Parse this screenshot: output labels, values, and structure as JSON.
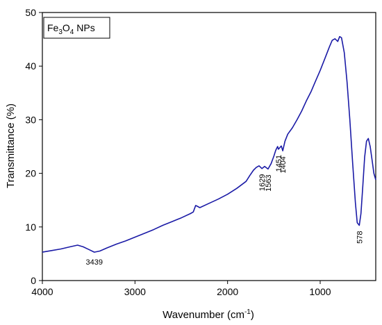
{
  "chart_data": {
    "type": "line",
    "xlabel": "Wavenumber (cm",
    "xlabel_sup": "-1",
    "xlabel_end": ")",
    "ylabel": "Transmittance (%)",
    "xlim": [
      4000,
      400
    ],
    "x_reversed": true,
    "ylim": [
      0,
      50
    ],
    "xticks": [
      4000,
      3000,
      2000,
      1000
    ],
    "yticks": [
      0,
      10,
      20,
      30,
      40,
      50
    ],
    "grid": false,
    "legend": {
      "base": "Fe",
      "sub1": "3",
      "mid": "O",
      "sub2": "4",
      "tail": " NPs",
      "placement": "top-left"
    },
    "series": [
      {
        "color": "#1a1aa6",
        "points": [
          [
            4000,
            5.3
          ],
          [
            3900,
            5.6
          ],
          [
            3800,
            5.9
          ],
          [
            3700,
            6.3
          ],
          [
            3620,
            6.6
          ],
          [
            3560,
            6.3
          ],
          [
            3500,
            5.8
          ],
          [
            3439,
            5.3
          ],
          [
            3380,
            5.5
          ],
          [
            3300,
            6.1
          ],
          [
            3200,
            6.8
          ],
          [
            3100,
            7.4
          ],
          [
            3000,
            8.1
          ],
          [
            2900,
            8.8
          ],
          [
            2800,
            9.5
          ],
          [
            2700,
            10.3
          ],
          [
            2600,
            11.0
          ],
          [
            2500,
            11.7
          ],
          [
            2400,
            12.5
          ],
          [
            2370,
            12.8
          ],
          [
            2345,
            14.0
          ],
          [
            2320,
            13.8
          ],
          [
            2300,
            13.6
          ],
          [
            2200,
            14.4
          ],
          [
            2100,
            15.2
          ],
          [
            2000,
            16.1
          ],
          [
            1900,
            17.2
          ],
          [
            1800,
            18.5
          ],
          [
            1760,
            19.6
          ],
          [
            1720,
            20.6
          ],
          [
            1690,
            21.1
          ],
          [
            1660,
            21.4
          ],
          [
            1629,
            20.9
          ],
          [
            1600,
            21.3
          ],
          [
            1563,
            20.8
          ],
          [
            1530,
            21.8
          ],
          [
            1500,
            23.2
          ],
          [
            1480,
            24.3
          ],
          [
            1460,
            25.0
          ],
          [
            1451,
            24.5
          ],
          [
            1435,
            24.8
          ],
          [
            1420,
            25.1
          ],
          [
            1404,
            24.2
          ],
          [
            1380,
            26.0
          ],
          [
            1350,
            27.3
          ],
          [
            1300,
            28.5
          ],
          [
            1250,
            30.0
          ],
          [
            1200,
            31.6
          ],
          [
            1150,
            33.5
          ],
          [
            1100,
            35.2
          ],
          [
            1050,
            37.2
          ],
          [
            1000,
            39.2
          ],
          [
            950,
            41.4
          ],
          [
            900,
            43.6
          ],
          [
            870,
            44.8
          ],
          [
            840,
            45.1
          ],
          [
            810,
            44.6
          ],
          [
            790,
            45.5
          ],
          [
            770,
            45.3
          ],
          [
            740,
            42.5
          ],
          [
            710,
            37.0
          ],
          [
            680,
            30.0
          ],
          [
            650,
            22.0
          ],
          [
            620,
            14.5
          ],
          [
            600,
            10.8
          ],
          [
            578,
            10.3
          ],
          [
            560,
            12.5
          ],
          [
            540,
            17.5
          ],
          [
            520,
            23.0
          ],
          [
            500,
            26.0
          ],
          [
            480,
            26.5
          ],
          [
            460,
            25.0
          ],
          [
            440,
            22.5
          ],
          [
            420,
            20.0
          ],
          [
            400,
            18.8
          ]
        ]
      }
    ],
    "annotations": [
      {
        "text": "3439",
        "x": 3439,
        "y": 5.3,
        "rotate": false
      },
      {
        "text": "1629",
        "x": 1629,
        "y": 20.9,
        "rotate": true
      },
      {
        "text": "1563",
        "x": 1563,
        "y": 20.8,
        "rotate": true
      },
      {
        "text": "1451",
        "x": 1451,
        "y": 24.5,
        "rotate": true
      },
      {
        "text": "1404",
        "x": 1404,
        "y": 24.2,
        "rotate": true
      },
      {
        "text": "578",
        "x": 578,
        "y": 10.3,
        "rotate": true
      }
    ]
  }
}
